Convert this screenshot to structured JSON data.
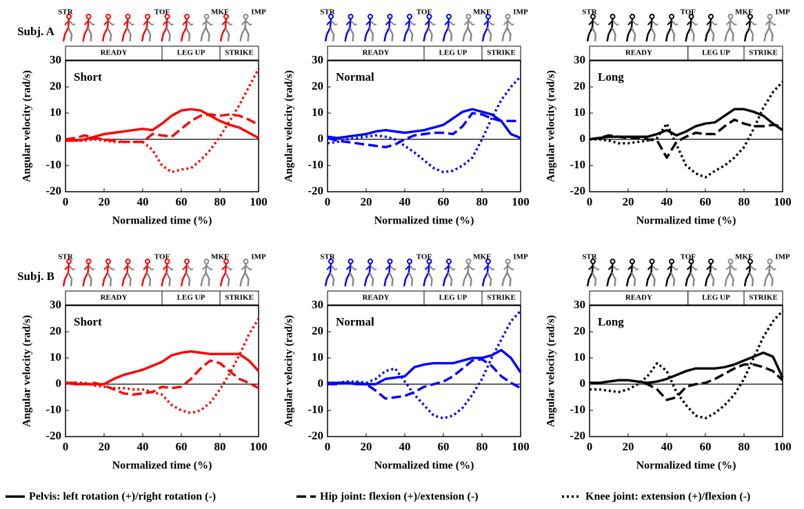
{
  "row_labels": [
    "Subj. A",
    "Subj. B"
  ],
  "chart_data": [
    {
      "type": "line",
      "annotation": "Short",
      "xlabel": "Normalized time (%)",
      "ylabel": "Angular velocity (rad/s)",
      "xlim": [
        0,
        100
      ],
      "xticks": [
        0,
        20,
        40,
        60,
        80,
        100
      ],
      "ylim": [
        -20,
        30
      ],
      "yticks": [
        -20,
        -10,
        0,
        10,
        20,
        30
      ],
      "phases": [
        {
          "label": "READY",
          "start": 0,
          "end": 50
        },
        {
          "label": "LEG UP",
          "start": 50,
          "end": 80
        },
        {
          "label": "STRIKE",
          "start": 80,
          "end": 100
        }
      ],
      "events": [
        {
          "label": "STR",
          "x": 0
        },
        {
          "label": "TOF",
          "x": 50
        },
        {
          "label": "MKF",
          "x": 80
        },
        {
          "label": "IMP",
          "x": 100
        }
      ],
      "x": [
        0,
        5,
        10,
        15,
        20,
        25,
        30,
        35,
        40,
        45,
        50,
        55,
        60,
        65,
        70,
        75,
        80,
        85,
        90,
        95,
        100
      ],
      "series": [
        {
          "name": "Pelvis: left rotation (+)/right rotation (-)",
          "color": "#ff0000",
          "dash": "solid",
          "values": [
            -0.5,
            -0.5,
            0,
            1,
            2,
            2.5,
            3,
            3.5,
            4,
            3.5,
            6,
            9,
            11,
            11.5,
            11,
            9,
            7,
            5.5,
            4.5,
            2.5,
            0.5
          ]
        },
        {
          "name": "Hip joint: flexion (+)/extension (-)",
          "color": "#ff0000",
          "dash": "dashed",
          "values": [
            0,
            0.5,
            1.5,
            0.5,
            0,
            -0.5,
            -1,
            -1,
            -1,
            2,
            1.5,
            1,
            4,
            7,
            9,
            9.5,
            9,
            9.5,
            9,
            7.5,
            5.5
          ]
        },
        {
          "name": "Knee joint: extension (+)/flexion (-)",
          "color": "#ff0000",
          "dash": "dotted",
          "values": [
            -0.5,
            -0.5,
            -0.5,
            0,
            -0.5,
            -1,
            -1,
            -1,
            -1,
            -4,
            -10,
            -12.5,
            -11.5,
            -11,
            -8,
            -4,
            1,
            7,
            13,
            20,
            27
          ]
        }
      ]
    },
    {
      "type": "line",
      "annotation": "Normal",
      "xlabel": "Normalized time (%)",
      "ylabel": "Angular velocity (rad/s)",
      "xlim": [
        0,
        100
      ],
      "xticks": [
        0,
        20,
        40,
        60,
        80,
        100
      ],
      "ylim": [
        -20,
        30
      ],
      "yticks": [
        -20,
        -10,
        0,
        10,
        20,
        30
      ],
      "phases": [
        {
          "label": "READY",
          "start": 0,
          "end": 50
        },
        {
          "label": "LEG UP",
          "start": 50,
          "end": 80
        },
        {
          "label": "STRIKE",
          "start": 80,
          "end": 100
        }
      ],
      "events": [
        {
          "label": "STR",
          "x": 0
        },
        {
          "label": "TOF",
          "x": 50
        },
        {
          "label": "MKF",
          "x": 80
        },
        {
          "label": "IMP",
          "x": 100
        }
      ],
      "x": [
        0,
        5,
        10,
        15,
        20,
        25,
        30,
        35,
        40,
        45,
        50,
        55,
        60,
        65,
        70,
        75,
        80,
        85,
        90,
        95,
        100
      ],
      "series": [
        {
          "name": "Pelvis: left rotation (+)/right rotation (-)",
          "color": "#0000ff",
          "dash": "solid",
          "values": [
            1,
            0.5,
            1,
            1.5,
            2,
            3,
            3.5,
            3,
            2.5,
            3,
            3.5,
            4.5,
            5.5,
            8,
            10.5,
            11.5,
            10.5,
            9.5,
            7,
            2,
            0.5
          ]
        },
        {
          "name": "Hip joint: flexion (+)/extension (-)",
          "color": "#0000ff",
          "dash": "dashed",
          "values": [
            0.5,
            -0.5,
            -1,
            -1.5,
            -2,
            -2.5,
            -3,
            -2,
            0,
            1.5,
            2,
            2.5,
            2.5,
            2,
            5,
            10,
            9.5,
            8,
            7,
            7,
            7
          ]
        },
        {
          "name": "Knee joint: extension (+)/flexion (-)",
          "color": "#0000ff",
          "dash": "dotted",
          "values": [
            -1.5,
            -1,
            0,
            0.5,
            1,
            1.5,
            1,
            0,
            -2.5,
            -5,
            -8,
            -11,
            -12.5,
            -12,
            -10,
            -7,
            0,
            8,
            15,
            20,
            24
          ]
        }
      ]
    },
    {
      "type": "line",
      "annotation": "Long",
      "xlabel": "Normalized time (%)",
      "ylabel": "Angular velocity (rad/s)",
      "xlim": [
        0,
        100
      ],
      "xticks": [
        0,
        20,
        40,
        60,
        80,
        100
      ],
      "ylim": [
        -20,
        30
      ],
      "yticks": [
        -20,
        -10,
        0,
        10,
        20,
        30
      ],
      "phases": [
        {
          "label": "READY",
          "start": 0,
          "end": 51
        },
        {
          "label": "LEG UP",
          "start": 51,
          "end": 80
        },
        {
          "label": "STRIKE",
          "start": 80,
          "end": 100
        }
      ],
      "events": [
        {
          "label": "STR",
          "x": 0
        },
        {
          "label": "TOF",
          "x": 51
        },
        {
          "label": "MKF",
          "x": 80
        },
        {
          "label": "IMP",
          "x": 100
        }
      ],
      "x": [
        0,
        5,
        10,
        15,
        20,
        25,
        30,
        35,
        40,
        45,
        50,
        55,
        60,
        65,
        70,
        75,
        80,
        85,
        90,
        95,
        100
      ],
      "series": [
        {
          "name": "Pelvis: left rotation (+)/right rotation (-)",
          "color": "#000000",
          "dash": "solid",
          "values": [
            0,
            0.5,
            1,
            1,
            1,
            1,
            1,
            2,
            3.5,
            1.5,
            3,
            5,
            6,
            6.5,
            9,
            11.5,
            11.5,
            10.5,
            9,
            6,
            3.5
          ]
        },
        {
          "name": "Hip joint: flexion (+)/extension (-)",
          "color": "#000000",
          "dash": "dashed",
          "values": [
            0,
            0.5,
            1.5,
            1,
            0.5,
            0.5,
            0,
            -0.5,
            -7,
            -1,
            1,
            2.5,
            2,
            2,
            5,
            7.5,
            6,
            5,
            5,
            5.5,
            5
          ]
        },
        {
          "name": "Knee joint: extension (+)/flexion (-)",
          "color": "#000000",
          "dash": "dotted",
          "values": [
            0,
            0,
            -0.5,
            -1.5,
            -1.5,
            -1,
            -0.5,
            0.5,
            6,
            -2,
            -10,
            -13,
            -14.5,
            -12,
            -10,
            -7,
            -3,
            4,
            12,
            18,
            22
          ]
        }
      ]
    },
    {
      "type": "line",
      "annotation": "Short",
      "xlabel": "Normalized time (%)",
      "ylabel": "Angular velocity (rad/s)",
      "xlim": [
        0,
        100
      ],
      "xticks": [
        0,
        20,
        40,
        60,
        80,
        100
      ],
      "ylim": [
        -20,
        30
      ],
      "yticks": [
        -20,
        -10,
        0,
        10,
        20,
        30
      ],
      "phases": [
        {
          "label": "READY",
          "start": 0,
          "end": 50
        },
        {
          "label": "LEG UP",
          "start": 50,
          "end": 80
        },
        {
          "label": "STRIKE",
          "start": 80,
          "end": 100
        }
      ],
      "events": [
        {
          "label": "STR",
          "x": 0
        },
        {
          "label": "TOF",
          "x": 50
        },
        {
          "label": "MKF",
          "x": 80
        },
        {
          "label": "IMP",
          "x": 100
        }
      ],
      "x": [
        0,
        5,
        10,
        15,
        20,
        25,
        30,
        35,
        40,
        45,
        50,
        55,
        60,
        65,
        70,
        75,
        80,
        85,
        90,
        95,
        100
      ],
      "series": [
        {
          "name": "Pelvis: left rotation (+)/right rotation (-)",
          "color": "#ff0000",
          "dash": "solid",
          "values": [
            0.5,
            0,
            0,
            0,
            0,
            2,
            3.5,
            4.5,
            5.5,
            7,
            8.5,
            11,
            12,
            12.5,
            12,
            11.5,
            11.5,
            11.5,
            11.5,
            9,
            5
          ]
        },
        {
          "name": "Hip joint: flexion (+)/extension (-)",
          "color": "#ff0000",
          "dash": "dashed",
          "values": [
            0.5,
            0.5,
            0,
            0.5,
            -0.5,
            -2,
            -3.5,
            -4,
            -3.5,
            -3,
            -1,
            -1.5,
            -1,
            2,
            6,
            9,
            8,
            5,
            2,
            0.5,
            -1.5
          ]
        },
        {
          "name": "Knee joint: extension (+)/flexion (-)",
          "color": "#ff0000",
          "dash": "dotted",
          "values": [
            0.5,
            0.5,
            0.5,
            -0.5,
            -1,
            -1.5,
            -1.5,
            -2,
            -2,
            -3,
            -4,
            -8,
            -10,
            -11,
            -10,
            -7,
            -2,
            4,
            11,
            19,
            25
          ]
        }
      ]
    },
    {
      "type": "line",
      "annotation": "Normal",
      "xlabel": "Normalized time (%)",
      "ylabel": "Angular velocity (rad/s)",
      "xlim": [
        0,
        100
      ],
      "xticks": [
        0,
        20,
        40,
        60,
        80,
        100
      ],
      "ylim": [
        -20,
        30
      ],
      "yticks": [
        -20,
        -10,
        0,
        10,
        20,
        30
      ],
      "phases": [
        {
          "label": "READY",
          "start": 0,
          "end": 50
        },
        {
          "label": "LEG UP",
          "start": 50,
          "end": 80
        },
        {
          "label": "STRIKE",
          "start": 80,
          "end": 100
        }
      ],
      "events": [
        {
          "label": "STR",
          "x": 0
        },
        {
          "label": "TOF",
          "x": 50
        },
        {
          "label": "MKF",
          "x": 80
        },
        {
          "label": "IMP",
          "x": 100
        }
      ],
      "x": [
        0,
        5,
        10,
        15,
        20,
        25,
        30,
        35,
        40,
        45,
        50,
        55,
        60,
        65,
        70,
        75,
        80,
        85,
        90,
        95,
        100
      ],
      "series": [
        {
          "name": "Pelvis: left rotation (+)/right rotation (-)",
          "color": "#0000ff",
          "dash": "solid",
          "values": [
            0.5,
            0.5,
            0.5,
            0,
            0,
            0,
            2,
            2.5,
            3,
            6.5,
            7.5,
            8,
            8,
            8,
            9,
            10,
            10,
            11,
            13,
            10,
            4.5
          ]
        },
        {
          "name": "Hip joint: flexion (+)/extension (-)",
          "color": "#0000ff",
          "dash": "dashed",
          "values": [
            0,
            0,
            0.5,
            0.5,
            0,
            -2.5,
            -5.5,
            -5,
            -4.5,
            -3,
            -1,
            0,
            1,
            3,
            6,
            9,
            9.5,
            7,
            3,
            0.5,
            -1.5
          ]
        },
        {
          "name": "Knee joint: extension (+)/flexion (-)",
          "color": "#0000ff",
          "dash": "dotted",
          "values": [
            0.5,
            0.5,
            1,
            1,
            0.5,
            2,
            5,
            6,
            1,
            -4,
            -8,
            -12,
            -13,
            -12,
            -9,
            -4,
            2,
            10,
            17,
            24,
            28
          ]
        }
      ]
    },
    {
      "type": "line",
      "annotation": "Long",
      "xlabel": "Normalized time (%)",
      "ylabel": "Angular velocity (rad/s)",
      "xlim": [
        0,
        100
      ],
      "xticks": [
        0,
        20,
        40,
        60,
        80,
        100
      ],
      "ylim": [
        -20,
        30
      ],
      "yticks": [
        -20,
        -10,
        0,
        10,
        20,
        30
      ],
      "phases": [
        {
          "label": "READY",
          "start": 0,
          "end": 51
        },
        {
          "label": "LEG UP",
          "start": 51,
          "end": 80
        },
        {
          "label": "STRIKE",
          "start": 80,
          "end": 100
        }
      ],
      "events": [
        {
          "label": "STR",
          "x": 0
        },
        {
          "label": "TOF",
          "x": 51
        },
        {
          "label": "MKF",
          "x": 80
        },
        {
          "label": "IMP",
          "x": 100
        }
      ],
      "x": [
        0,
        5,
        10,
        15,
        20,
        25,
        30,
        35,
        40,
        45,
        50,
        55,
        60,
        65,
        70,
        75,
        80,
        85,
        90,
        95,
        100
      ],
      "series": [
        {
          "name": "Pelvis: left rotation (+)/right rotation (-)",
          "color": "#000000",
          "dash": "solid",
          "values": [
            0.5,
            0.5,
            1,
            1.5,
            1.5,
            1,
            0.5,
            1,
            2,
            3.5,
            5,
            6,
            6,
            6,
            6.5,
            7.5,
            9,
            10.5,
            12,
            10.5,
            2.5
          ]
        },
        {
          "name": "Hip joint: flexion (+)/extension (-)",
          "color": "#000000",
          "dash": "dashed",
          "values": [
            0.5,
            0.5,
            1,
            1.5,
            1.5,
            1,
            0,
            -2,
            -6,
            -5,
            -1,
            0,
            0.5,
            2,
            4,
            6,
            7.5,
            7.5,
            6.5,
            5,
            1.5
          ]
        },
        {
          "name": "Knee joint: extension (+)/flexion (-)",
          "color": "#000000",
          "dash": "dotted",
          "values": [
            -2,
            -2,
            -2.5,
            -3,
            -2,
            0,
            3,
            8,
            5,
            -3,
            -8,
            -12,
            -13,
            -11,
            -8,
            -4,
            2,
            10,
            18,
            24,
            28
          ]
        }
      ]
    }
  ]
}
